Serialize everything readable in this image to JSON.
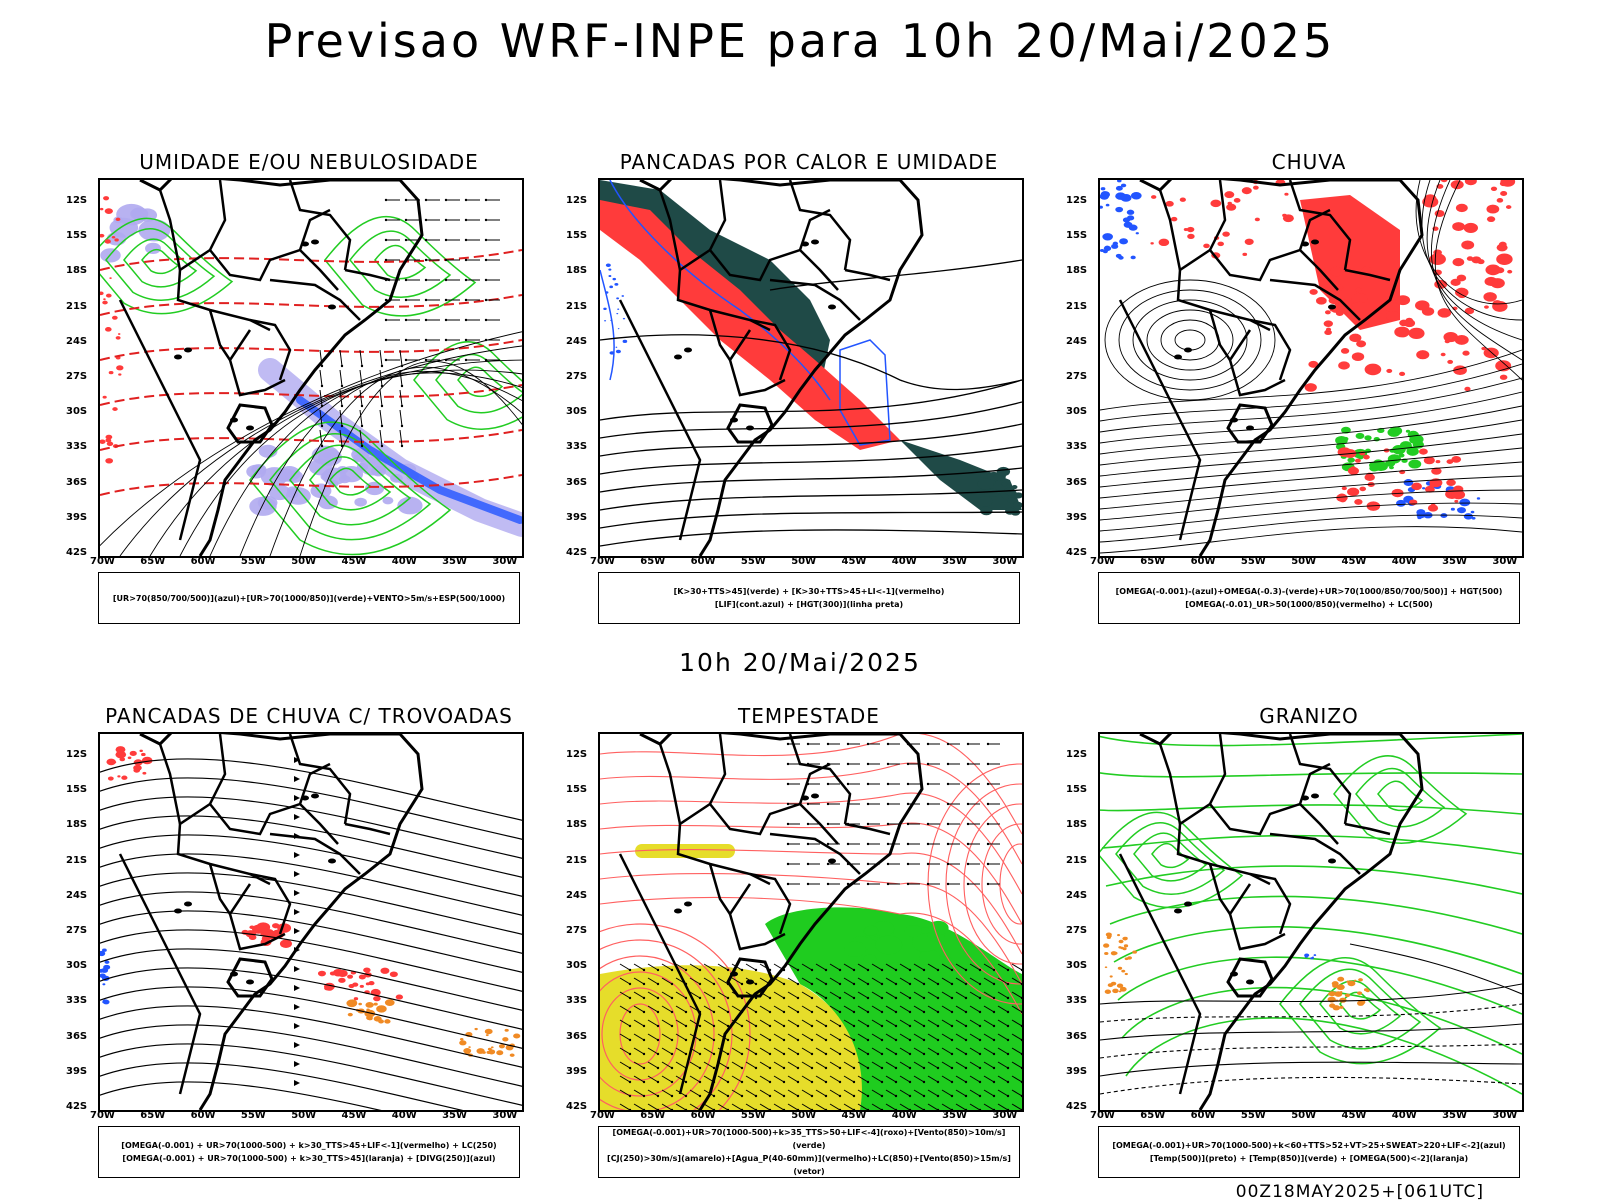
{
  "main_title": "Previsao WRF-INPE  para 10h 20/Mai/2025",
  "mid_title": "10h 20/Mai/2025",
  "footer": "00Z18MAY2025+[061UTC]",
  "lat_labels": [
    "12S",
    "15S",
    "18S",
    "21S",
    "24S",
    "27S",
    "30S",
    "33S",
    "36S",
    "39S",
    "42S"
  ],
  "lon_labels": [
    "70W",
    "65W",
    "60W",
    "55W",
    "50W",
    "45W",
    "40W",
    "35W",
    "30W"
  ],
  "panels": [
    {
      "title": "UMIDADE E/OU NEBULOSIDADE",
      "legend": [
        "[UR>70(850/700/500)](azul)+[UR>70(1000/850)](verde)+VENTO>5m/s+ESP(500/1000)"
      ]
    },
    {
      "title": "PANCADAS POR CALOR E UMIDADE",
      "legend": [
        "[K>30+TTS>45](verde) + [K>30+TTS>45+LI<-1](vermelho)",
        "[LIF](cont.azul) + [HGT(300)](linha preta)"
      ]
    },
    {
      "title": "CHUVA",
      "legend": [
        "[OMEGA(-0.001)-(azul)+OMEGA(-0.3)-(verde)+UR>70(1000/850/700/500)] + HGT(500)",
        "[OMEGA(-0.01)_UR>50(1000/850)(vermelho) + LC(500)"
      ]
    },
    {
      "title": "PANCADAS DE CHUVA C/ TROVOADAS",
      "legend": [
        "[OMEGA(-0.001) + UR>70(1000-500) + k>30_TTS>45+LIF<-1](vermelho) + LC(250)",
        "[OMEGA(-0.001) + UR>70(1000-500) + k>30_TTS>45](laranja) + [DIVG(250)](azul)"
      ]
    },
    {
      "title": "TEMPESTADE",
      "legend": [
        "[OMEGA(-0.001)+UR>70(1000-500)+k>35_TTS>50+LIF<-4](roxo)+[Vento(850)>10m/s](verde)",
        "[CJ(250)>30m/s](amarelo)+[Agua_P(40-60mm)](vermelho)+LC(850)+[Vento(850)>15m/s](vetor)"
      ]
    },
    {
      "title": "GRANIZO",
      "legend": [
        "[OMEGA(-0.001)+UR>70(1000-500)+k<60+TTS>52+VT>25+SWEAT>220+LIF<-2](azul)",
        "[Temp(500)](preto) + [Temp(850)](verde) + [OMEGA(500)<-2](laranja)"
      ]
    }
  ],
  "colors": {
    "red": "#ff3b3b",
    "green": "#22cc22",
    "blue": "#2255ff",
    "lavender": "#b0aaf0",
    "darkteal": "#1f4a47",
    "yellow": "#e6dd2a",
    "orange": "#f08a24",
    "black": "#000000"
  }
}
